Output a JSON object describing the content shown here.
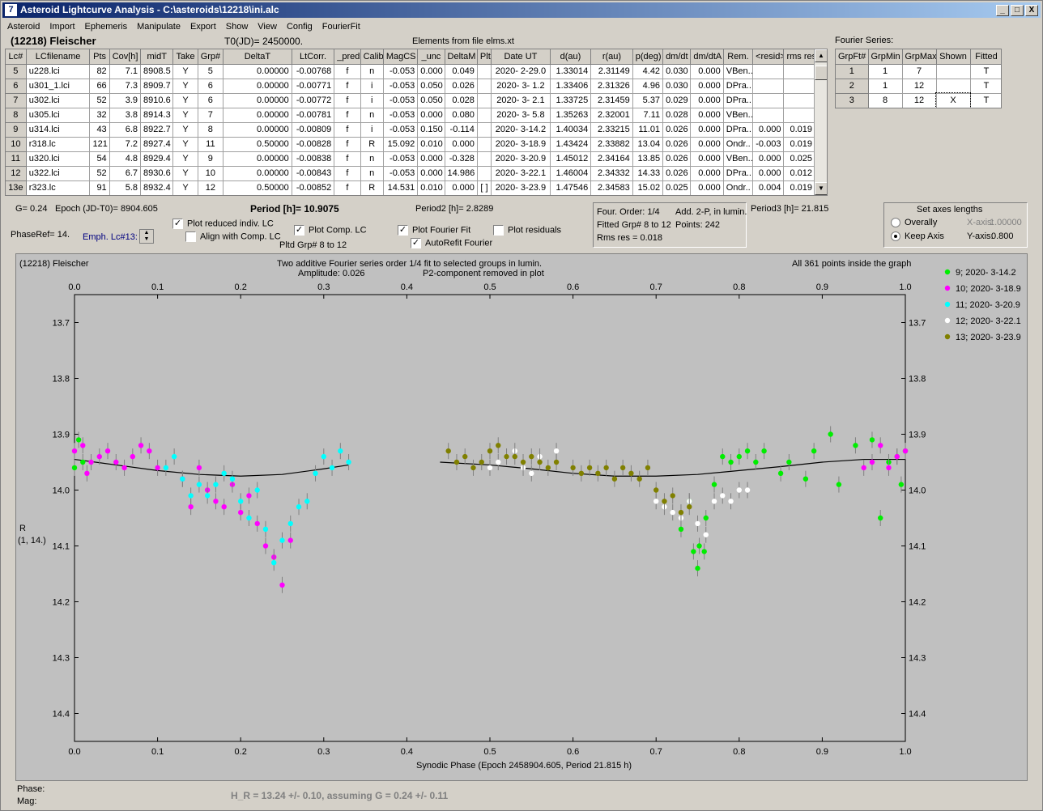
{
  "window": {
    "title": "Asteroid Lightcurve Analysis - C:\\asteroids\\12218\\ini.alc",
    "icon": "app-icon",
    "minimize": "_",
    "maximize": "□",
    "close": "X"
  },
  "menu": [
    "Asteroid",
    "Import",
    "Ephemeris",
    "Manipulate",
    "Export",
    "Show",
    "View",
    "Config",
    "FourierFit"
  ],
  "header": {
    "asteroid": "(12218) Fleischer",
    "t0": "T0(JD)= 2450000.",
    "elements": "Elements from file elms.xt",
    "fourier_series_label": "Fourier Series:"
  },
  "lc_table": {
    "columns": [
      "Lc#",
      "LCfilename",
      "Pts",
      "Cov[h]",
      "midT",
      "Take",
      "Grp#",
      "DeltaT",
      "LtCorr.",
      "_pred.",
      "Calib.",
      "MagCS",
      "_unc",
      "DeltaM",
      "Plt",
      "Date UT",
      "d(au)",
      "r(au)",
      "p(deg)",
      "dm/dt",
      "dm/dtA",
      "Rem.",
      "<resid>",
      "rms res"
    ],
    "rows": [
      [
        "5",
        "u228.lci",
        "82",
        "7.1",
        "8908.5",
        "Y",
        "5",
        "0.00000",
        "-0.00768",
        "f",
        "n",
        "-0.053",
        "0.000",
        "0.049",
        "",
        "2020- 2-29.0",
        "1.33014",
        "2.31149",
        "4.42",
        "0.030",
        "0.000",
        "VBen..",
        "",
        ""
      ],
      [
        "6",
        "u301_1.lci",
        "66",
        "7.3",
        "8909.7",
        "Y",
        "6",
        "0.00000",
        "-0.00771",
        "f",
        "i",
        "-0.053",
        "0.050",
        "0.026",
        "",
        "2020- 3- 1.2",
        "1.33406",
        "2.31326",
        "4.96",
        "0.030",
        "0.000",
        "DPra..",
        "",
        ""
      ],
      [
        "7",
        "u302.lci",
        "52",
        "3.9",
        "8910.6",
        "Y",
        "6",
        "0.00000",
        "-0.00772",
        "f",
        "i",
        "-0.053",
        "0.050",
        "0.028",
        "",
        "2020- 3- 2.1",
        "1.33725",
        "2.31459",
        "5.37",
        "0.029",
        "0.000",
        "DPra..",
        "",
        ""
      ],
      [
        "8",
        "u305.lci",
        "32",
        "3.8",
        "8914.3",
        "Y",
        "7",
        "0.00000",
        "-0.00781",
        "f",
        "n",
        "-0.053",
        "0.000",
        "0.080",
        "",
        "2020- 3- 5.8",
        "1.35263",
        "2.32001",
        "7.11",
        "0.028",
        "0.000",
        "VBen..",
        "",
        ""
      ],
      [
        "9",
        "u314.lci",
        "43",
        "6.8",
        "8922.7",
        "Y",
        "8",
        "0.00000",
        "-0.00809",
        "f",
        "i",
        "-0.053",
        "0.150",
        "-0.114",
        "",
        "2020- 3-14.2",
        "1.40034",
        "2.33215",
        "11.01",
        "0.026",
        "0.000",
        "DPra..",
        "0.000",
        "0.019"
      ],
      [
        "10",
        "r318.lc",
        "121",
        "7.2",
        "8927.4",
        "Y",
        "11",
        "0.50000",
        "-0.00828",
        "f",
        "R",
        "15.092",
        "0.010",
        "0.000",
        "",
        "2020- 3-18.9",
        "1.43424",
        "2.33882",
        "13.04",
        "0.026",
        "0.000",
        "Ondr..",
        "-0.003",
        "0.019"
      ],
      [
        "11",
        "u320.lci",
        "54",
        "4.8",
        "8929.4",
        "Y",
        "9",
        "0.00000",
        "-0.00838",
        "f",
        "n",
        "-0.053",
        "0.000",
        "-0.328",
        "",
        "2020- 3-20.9",
        "1.45012",
        "2.34164",
        "13.85",
        "0.026",
        "0.000",
        "VBen..",
        "0.000",
        "0.025"
      ],
      [
        "12",
        "u322.lci",
        "52",
        "6.7",
        "8930.6",
        "Y",
        "10",
        "0.00000",
        "-0.00843",
        "f",
        "n",
        "-0.053",
        "0.000",
        "14.986",
        "",
        "2020- 3-22.1",
        "1.46004",
        "2.34332",
        "14.33",
        "0.026",
        "0.000",
        "DPra..",
        "0.000",
        "0.012"
      ],
      [
        "13e",
        "r323.lc",
        "91",
        "5.8",
        "8932.4",
        "Y",
        "12",
        "0.50000",
        "-0.00852",
        "f",
        "R",
        "14.531",
        "0.010",
        "0.000",
        "[ ]",
        "2020- 3-23.9",
        "1.47546",
        "2.34583",
        "15.02",
        "0.025",
        "0.000",
        "Ondr..",
        "0.004",
        "0.019"
      ]
    ]
  },
  "fourier_table": {
    "columns": [
      "GrpFt#",
      "GrpMin",
      "GrpMax",
      "Shown",
      "Fitted"
    ],
    "rows": [
      [
        "1",
        "1",
        "7",
        "",
        "T"
      ],
      [
        "2",
        "1",
        "12",
        "",
        "T"
      ],
      [
        "3",
        "8",
        "12",
        "X",
        "T"
      ]
    ]
  },
  "controls": {
    "g": "G= 0.24",
    "epoch": "Epoch (JD-T0)= 8904.605",
    "period": "Period [h]= 10.9075",
    "period2": "Period2 [h]= 2.8289",
    "period3": "Period3 [h]= 21.815",
    "phaseref": "PhaseRef= 14.",
    "emph": "Emph. Lc#13:",
    "plot_reduced": "Plot reduced indiv. LC",
    "align_comp": "Align with Comp. LC",
    "plot_comp": "Plot Comp. LC",
    "pltd_grp": "Pltd Grp#  8  to  12",
    "plot_fourier": "Plot Fourier Fit",
    "autorefit": "AutoRefit Fourier",
    "plot_residuals": "Plot residuals",
    "four_order": "Four. Order:  1/4",
    "add2p": "Add. 2-P, in lumin.",
    "fitted_grp": "Fitted Grp# 8 to 12",
    "points": "Points: 242",
    "rms": "Rms res      = 0.018",
    "axes_title": "Set axes lengths",
    "overally": "Overally",
    "keep_axis": "Keep Axis",
    "xaxis_label": "X-axis:",
    "xaxis_val": "1.00000",
    "yaxis_label": "Y-axis:",
    "yaxis_val": "0.800"
  },
  "plot": {
    "top_left": "(12218) Fleischer",
    "title1": "Two additive Fourier series order 1/4 fit to selected groups in lumin.",
    "title2": "Amplitude: 0.026",
    "title3": "P2-component removed in plot",
    "top_right": "All 361 points inside the graph",
    "ylabel1": "R",
    "ylabel2": "(1, 14.)",
    "xlabel": "Synodic Phase (Epoch 2458904.605, Period 21.815 h)"
  },
  "footer": {
    "phase": "Phase:",
    "mag": "Mag:",
    "hr": "H_R = 13.24 +/- 0.10, assuming G = 0.24 +/- 0.11"
  },
  "chart_data": {
    "type": "scatter",
    "xlim": [
      0.0,
      1.0
    ],
    "ylim": [
      14.45,
      13.65
    ],
    "x_ticks": [
      0.0,
      0.1,
      0.2,
      0.3,
      0.4,
      0.5,
      0.6,
      0.7,
      0.8,
      0.9,
      1.0
    ],
    "y_ticks": [
      13.7,
      13.8,
      13.9,
      14.0,
      14.1,
      14.2,
      14.3,
      14.4
    ],
    "legend": [
      {
        "name": "9; 2020- 3-14.2",
        "color": "#00ee00"
      },
      {
        "name": "10; 2020- 3-18.9",
        "color": "#ff00ff"
      },
      {
        "name": "11; 2020- 3-20.9",
        "color": "#00ffff"
      },
      {
        "name": "12; 2020- 3-22.1",
        "color": "#ffffff"
      },
      {
        "name": "13; 2020- 3-23.9",
        "color": "#808000"
      }
    ],
    "fit_curve": {
      "x": [
        0.0,
        0.05,
        0.1,
        0.15,
        0.2,
        0.25,
        0.3,
        0.33
      ],
      "y": [
        13.945,
        13.955,
        13.965,
        13.972,
        13.975,
        13.972,
        13.962,
        13.955
      ],
      "x2": [
        0.44,
        0.5,
        0.55,
        0.6,
        0.65,
        0.7,
        0.75,
        0.8,
        0.85,
        0.9,
        0.95,
        1.0
      ],
      "y2": [
        13.95,
        13.955,
        13.962,
        13.97,
        13.975,
        13.975,
        13.972,
        13.965,
        13.958,
        13.95,
        13.945,
        13.945
      ]
    },
    "series": [
      {
        "name": "9; 2020- 3-14.2",
        "color": "#00ee00",
        "x": [
          0.0,
          0.005,
          0.01,
          0.73,
          0.74,
          0.745,
          0.75,
          0.752,
          0.758,
          0.76,
          0.77,
          0.78,
          0.79,
          0.8,
          0.81,
          0.82,
          0.83,
          0.85,
          0.86,
          0.88,
          0.89,
          0.91,
          0.92,
          0.94,
          0.96,
          0.97,
          0.98,
          0.99,
          1.0,
          0.995
        ],
        "y": [
          13.96,
          13.91,
          13.95,
          14.07,
          14.02,
          14.11,
          14.14,
          14.1,
          14.11,
          14.05,
          13.99,
          13.94,
          13.95,
          13.94,
          13.93,
          13.95,
          13.93,
          13.97,
          13.95,
          13.98,
          13.93,
          13.9,
          13.99,
          13.92,
          13.91,
          14.05,
          13.95,
          13.94,
          13.93,
          13.99
        ]
      },
      {
        "name": "10; 2020- 3-18.9",
        "color": "#ff00ff",
        "x": [
          0.0,
          0.01,
          0.015,
          0.02,
          0.03,
          0.04,
          0.05,
          0.06,
          0.07,
          0.08,
          0.09,
          0.1,
          0.13,
          0.14,
          0.15,
          0.16,
          0.17,
          0.18,
          0.19,
          0.2,
          0.21,
          0.22,
          0.23,
          0.24,
          0.25,
          0.26,
          0.95,
          0.96,
          0.97,
          0.98,
          0.99,
          1.0
        ],
        "y": [
          13.93,
          13.92,
          13.97,
          13.95,
          13.94,
          13.93,
          13.95,
          13.96,
          13.94,
          13.92,
          13.93,
          13.96,
          13.98,
          14.03,
          13.96,
          14.0,
          14.02,
          14.03,
          13.99,
          14.04,
          14.01,
          14.06,
          14.1,
          14.12,
          14.17,
          14.09,
          13.96,
          13.95,
          13.92,
          13.96,
          13.94,
          13.93
        ]
      },
      {
        "name": "11; 2020- 3-20.9",
        "color": "#00ffff",
        "x": [
          0.11,
          0.12,
          0.13,
          0.14,
          0.15,
          0.16,
          0.17,
          0.18,
          0.19,
          0.2,
          0.21,
          0.22,
          0.23,
          0.24,
          0.25,
          0.26,
          0.27,
          0.28,
          0.29,
          0.3,
          0.31,
          0.32,
          0.33
        ],
        "y": [
          13.96,
          13.94,
          13.98,
          14.01,
          13.99,
          14.01,
          13.99,
          13.97,
          13.98,
          14.02,
          14.05,
          14.0,
          14.07,
          14.13,
          14.09,
          14.06,
          14.03,
          14.02,
          13.97,
          13.94,
          13.96,
          13.93,
          13.95
        ]
      },
      {
        "name": "12; 2020- 3-22.1",
        "color": "#ffffff",
        "x": [
          0.5,
          0.51,
          0.52,
          0.53,
          0.54,
          0.55,
          0.56,
          0.58,
          0.7,
          0.71,
          0.72,
          0.73,
          0.74,
          0.75,
          0.76,
          0.77,
          0.78,
          0.79,
          0.8,
          0.81
        ],
        "y": [
          13.96,
          13.95,
          13.94,
          13.93,
          13.96,
          13.97,
          13.94,
          13.93,
          14.02,
          14.03,
          14.04,
          14.05,
          14.02,
          14.06,
          14.08,
          14.02,
          14.01,
          14.02,
          14.0,
          14.0
        ]
      },
      {
        "name": "13; 2020- 3-23.9",
        "color": "#808000",
        "x": [
          0.45,
          0.46,
          0.47,
          0.48,
          0.49,
          0.5,
          0.51,
          0.52,
          0.53,
          0.54,
          0.55,
          0.56,
          0.57,
          0.58,
          0.6,
          0.61,
          0.62,
          0.63,
          0.64,
          0.65,
          0.66,
          0.67,
          0.68,
          0.69,
          0.7,
          0.71,
          0.72,
          0.73,
          0.74
        ],
        "y": [
          13.93,
          13.95,
          13.94,
          13.96,
          13.95,
          13.93,
          13.92,
          13.94,
          13.94,
          13.95,
          13.94,
          13.95,
          13.96,
          13.95,
          13.96,
          13.97,
          13.96,
          13.97,
          13.96,
          13.98,
          13.96,
          13.97,
          13.98,
          13.96,
          14.0,
          14.02,
          14.01,
          14.04,
          14.03
        ]
      }
    ]
  }
}
